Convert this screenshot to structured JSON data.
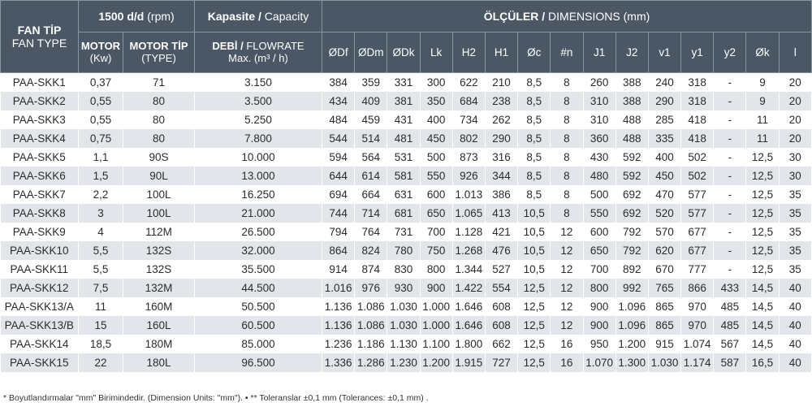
{
  "header": {
    "fan_type": {
      "line1": "FAN TİP",
      "line2": "FAN TYPE"
    },
    "rpm_group": {
      "bold": "1500 d/d",
      "normal": " (rpm)"
    },
    "capacity_group": {
      "bold": "Kapasite /",
      "normal": " Capacity"
    },
    "dimensions_group": {
      "bold": "ÖLÇÜLER /",
      "normal": " DIMENSIONS (mm)"
    },
    "motor": {
      "line1": "MOTOR",
      "line2": "(Kw)"
    },
    "motor_type": {
      "line1": "MOTOR TİP",
      "line2": "(TYPE)"
    },
    "flowrate": {
      "bold": "DEBİ /",
      "normal": " FLOWRATE",
      "line2": "Max. (m³ / h)"
    },
    "dimension_columns": [
      "ØDf",
      "ØDm",
      "ØDk",
      "Lk",
      "H2",
      "H1",
      "Øc",
      "#n",
      "J1",
      "J2",
      "v1",
      "y1",
      "y2",
      "Øk",
      "l"
    ]
  },
  "rows": [
    [
      "PAA-SKK1",
      "0,37",
      "71",
      "3.150",
      "384",
      "359",
      "331",
      "300",
      "622",
      "210",
      "8,5",
      "8",
      "260",
      "388",
      "240",
      "318",
      "-",
      "9",
      "20"
    ],
    [
      "PAA-SKK2",
      "0,55",
      "80",
      "3.500",
      "434",
      "409",
      "381",
      "350",
      "684",
      "238",
      "8,5",
      "8",
      "310",
      "388",
      "290",
      "318",
      "-",
      "9",
      "20"
    ],
    [
      "PAA-SKK3",
      "0,55",
      "80",
      "5.250",
      "484",
      "459",
      "431",
      "400",
      "734",
      "262",
      "8,5",
      "8",
      "310",
      "488",
      "285",
      "418",
      "-",
      "11",
      "20"
    ],
    [
      "PAA-SKK4",
      "0,75",
      "80",
      "7.800",
      "544",
      "514",
      "481",
      "450",
      "802",
      "290",
      "8,5",
      "8",
      "360",
      "488",
      "335",
      "418",
      "-",
      "11",
      "20"
    ],
    [
      "PAA-SKK5",
      "1,1",
      "90S",
      "10.000",
      "594",
      "564",
      "531",
      "500",
      "873",
      "316",
      "8,5",
      "8",
      "430",
      "592",
      "400",
      "502",
      "-",
      "12,5",
      "30"
    ],
    [
      "PAA-SKK6",
      "1,5",
      "90L",
      "13.000",
      "644",
      "614",
      "581",
      "550",
      "926",
      "344",
      "8,5",
      "8",
      "480",
      "592",
      "450",
      "502",
      "-",
      "12,5",
      "30"
    ],
    [
      "PAA-SKK7",
      "2,2",
      "100L",
      "16.250",
      "694",
      "664",
      "631",
      "600",
      "1.013",
      "386",
      "8,5",
      "8",
      "500",
      "692",
      "470",
      "577",
      "-",
      "12,5",
      "35"
    ],
    [
      "PAA-SKK8",
      "3",
      "100L",
      "21.000",
      "744",
      "714",
      "681",
      "650",
      "1.065",
      "413",
      "10,5",
      "8",
      "550",
      "692",
      "520",
      "577",
      "-",
      "12,5",
      "35"
    ],
    [
      "PAA-SKK9",
      "4",
      "112M",
      "26.500",
      "794",
      "764",
      "731",
      "700",
      "1.128",
      "421",
      "10,5",
      "12",
      "600",
      "792",
      "570",
      "677",
      "-",
      "12,5",
      "35"
    ],
    [
      "PAA-SKK10",
      "5,5",
      "132S",
      "32.000",
      "864",
      "824",
      "780",
      "750",
      "1.268",
      "476",
      "10,5",
      "12",
      "650",
      "792",
      "620",
      "677",
      "-",
      "12,5",
      "35"
    ],
    [
      "PAA-SKK11",
      "5,5",
      "132S",
      "35.500",
      "914",
      "874",
      "830",
      "800",
      "1.344",
      "527",
      "10,5",
      "12",
      "700",
      "892",
      "670",
      "777",
      "-",
      "12,5",
      "35"
    ],
    [
      "PAA-SKK12",
      "7,5",
      "132M",
      "44.500",
      "1.016",
      "976",
      "930",
      "900",
      "1.422",
      "554",
      "12,5",
      "12",
      "800",
      "992",
      "765",
      "866",
      "433",
      "14,5",
      "40"
    ],
    [
      "PAA-SKK13/A",
      "11",
      "160M",
      "50.500",
      "1.136",
      "1.086",
      "1.030",
      "1.000",
      "1.646",
      "608",
      "12,5",
      "12",
      "900",
      "1.096",
      "865",
      "970",
      "485",
      "14,5",
      "40"
    ],
    [
      "PAA-SKK13/B",
      "15",
      "160L",
      "60.500",
      "1.136",
      "1.086",
      "1.030",
      "1.000",
      "1.646",
      "608",
      "12,5",
      "12",
      "900",
      "1.096",
      "865",
      "970",
      "485",
      "14,5",
      "40"
    ],
    [
      "PAA-SKK14",
      "18,5",
      "180M",
      "85.000",
      "1.236",
      "1.186",
      "1.130",
      "1.100",
      "1.800",
      "662",
      "12,5",
      "16",
      "950",
      "1.200",
      "915",
      "1.074",
      "567",
      "14,5",
      "40"
    ],
    [
      "PAA-SKK15",
      "22",
      "180L",
      "96.500",
      "1.336",
      "1.286",
      "1.230",
      "1.200",
      "1.915",
      "727",
      "12,5",
      "16",
      "1.070",
      "1.300",
      "1.030",
      "1.174",
      "587",
      "16,5",
      "40"
    ]
  ],
  "footnotes": {
    "note1": "* Boyutlandırmalar \"mm\" Birimindedir. (Dimension Units: \"mm\").",
    "bullet": "•",
    "note2": "** Toleranslar ±0,1 mm (Tolerances: ±0,1 mm) ."
  },
  "colors": {
    "header_bg": "#4b5765",
    "stripe_bg": "#e2e6ea"
  }
}
